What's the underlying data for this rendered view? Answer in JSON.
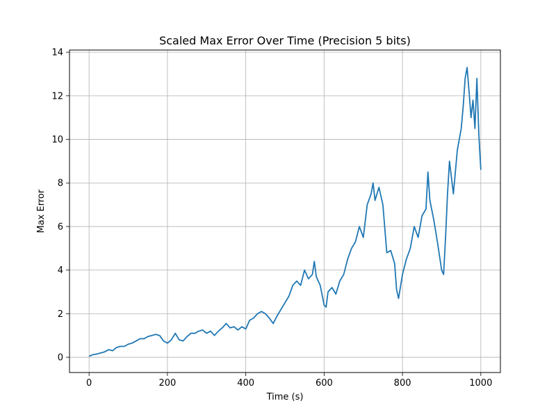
{
  "chart_data": {
    "type": "line",
    "title": "Scaled Max Error Over Time (Precision 5 bits)",
    "xlabel": "Time (s)",
    "ylabel": "Max Error",
    "xlim": [
      -50,
      1050
    ],
    "ylim": [
      -0.7,
      14.1
    ],
    "xticks": [
      0,
      200,
      400,
      600,
      800,
      1000
    ],
    "yticks": [
      0,
      2,
      4,
      6,
      8,
      10,
      12,
      14
    ],
    "grid": true,
    "line_color": "#1f77b4",
    "series": [
      {
        "x": [
          0,
          10,
          20,
          30,
          40,
          50,
          60,
          70,
          80,
          90,
          100,
          110,
          120,
          130,
          140,
          150,
          160,
          170,
          180,
          190,
          200,
          210,
          220,
          230,
          240,
          250,
          260,
          270,
          280,
          290,
          300,
          310,
          320,
          330,
          340,
          350,
          360,
          370,
          380,
          390,
          400,
          410,
          420,
          430,
          440,
          450,
          460,
          470,
          480,
          490,
          500,
          510,
          520,
          530,
          540,
          550,
          560,
          570,
          575,
          580,
          590,
          600,
          605,
          610,
          620,
          630,
          640,
          650,
          660,
          670,
          680,
          690,
          700,
          710,
          720,
          725,
          730,
          740,
          750,
          760,
          770,
          780,
          785,
          790,
          800,
          810,
          820,
          830,
          840,
          850,
          860,
          865,
          870,
          880,
          890,
          900,
          905,
          910,
          915,
          920,
          930,
          940,
          950,
          955,
          960,
          965,
          970,
          975,
          980,
          985,
          990,
          995,
          1000
        ],
        "values": [
          0.05,
          0.12,
          0.15,
          0.2,
          0.25,
          0.35,
          0.3,
          0.45,
          0.5,
          0.5,
          0.6,
          0.65,
          0.75,
          0.85,
          0.85,
          0.95,
          1.0,
          1.05,
          1.0,
          0.75,
          0.65,
          0.8,
          1.1,
          0.8,
          0.75,
          0.95,
          1.1,
          1.1,
          1.2,
          1.25,
          1.1,
          1.2,
          1.0,
          1.2,
          1.35,
          1.55,
          1.35,
          1.4,
          1.25,
          1.4,
          1.3,
          1.7,
          1.8,
          2.0,
          2.1,
          2.0,
          1.8,
          1.55,
          1.9,
          2.2,
          2.5,
          2.8,
          3.3,
          3.5,
          3.3,
          4.0,
          3.6,
          3.8,
          4.4,
          3.7,
          3.3,
          2.4,
          2.3,
          3.0,
          3.2,
          2.9,
          3.5,
          3.8,
          4.5,
          5.0,
          5.3,
          6.0,
          5.5,
          7.0,
          7.5,
          8.0,
          7.2,
          7.8,
          7.0,
          4.8,
          4.9,
          4.3,
          3.1,
          2.7,
          3.8,
          4.5,
          5.0,
          6.0,
          5.5,
          6.5,
          6.8,
          8.5,
          7.2,
          6.3,
          5.2,
          4.0,
          3.8,
          5.5,
          7.5,
          9.0,
          7.5,
          9.5,
          10.5,
          11.5,
          12.8,
          13.3,
          12.2,
          11.0,
          11.8,
          10.5,
          12.8,
          10.2,
          8.6
        ]
      }
    ]
  }
}
